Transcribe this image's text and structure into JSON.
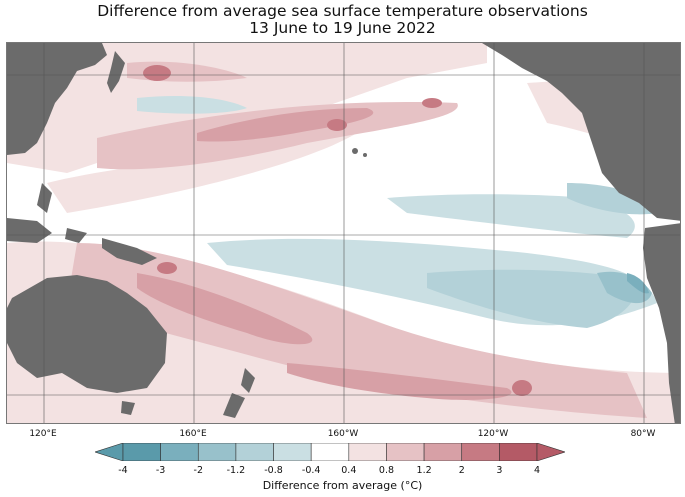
{
  "title": {
    "line1": "Difference from average sea surface temperature observations",
    "line2": "13 June to 19 June 2022"
  },
  "map": {
    "longitude_labels": [
      "120°E",
      "160°E",
      "160°W",
      "120°W",
      "80°W"
    ],
    "colors": {
      "land": "#6b6b6b",
      "ocean_neutral": "#ffffff",
      "gridline": "#555555"
    }
  },
  "colorbar": {
    "title": "Difference from average (°C)",
    "tick_labels": [
      "-4",
      "-3",
      "-2",
      "-1.2",
      "-0.8",
      "-0.4",
      "0.4",
      "0.8",
      "1.2",
      "2",
      "3",
      "4"
    ],
    "colors": [
      "#5a9aaa",
      "#7aafbd",
      "#98c1cb",
      "#b3d1d8",
      "#cadfe3",
      "#ffffff",
      "#f3e2e2",
      "#e6c2c5",
      "#d7a0a6",
      "#c67a83",
      "#b45a66"
    ]
  }
}
